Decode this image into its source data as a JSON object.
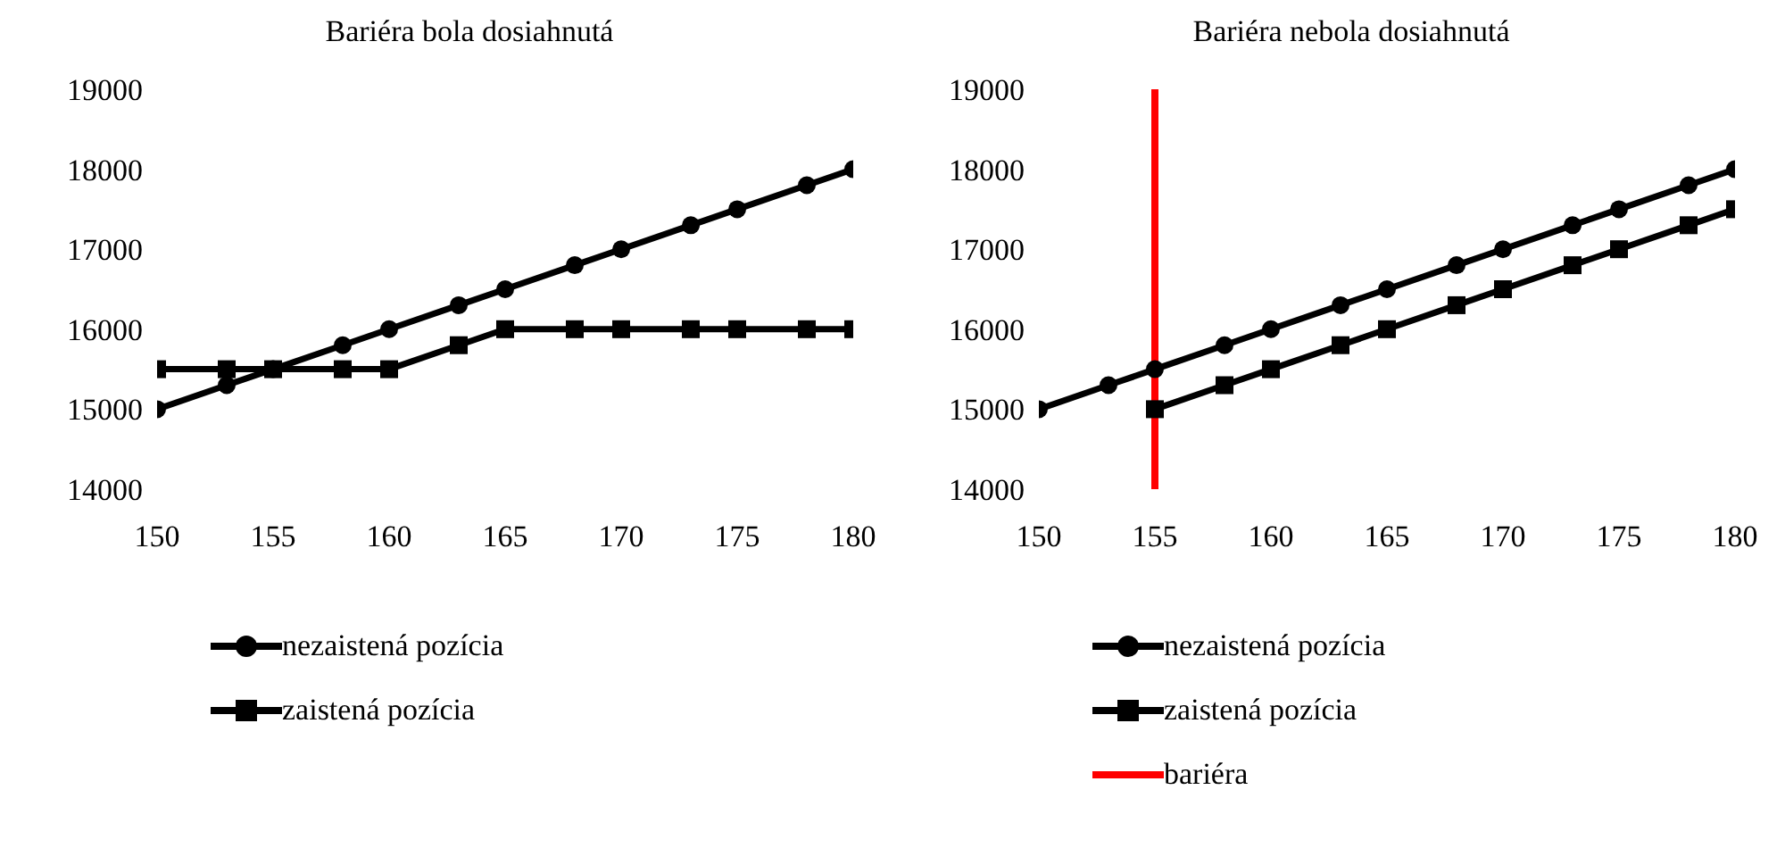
{
  "chart_data": [
    {
      "type": "line",
      "title": "Bariéra bola dosiahnutá",
      "xlim": [
        150,
        180
      ],
      "xticks": [
        150,
        155,
        160,
        165,
        170,
        175,
        180
      ],
      "ylim": [
        14000,
        19000
      ],
      "yticks": [
        14000,
        15000,
        16000,
        17000,
        18000,
        19000
      ],
      "grid": false,
      "legend": "bottom",
      "line_style": "solid",
      "series": [
        {
          "name": "nezaistená pozícia",
          "color": "#000000",
          "marker": "circle",
          "x": [
            150,
            153,
            155,
            158,
            160,
            163,
            165,
            168,
            170,
            173,
            175,
            178,
            180
          ],
          "values": [
            15000,
            15300,
            15500,
            15800,
            16000,
            16300,
            16500,
            16800,
            17000,
            17300,
            17500,
            17800,
            18000
          ]
        },
        {
          "name": "zaistená pozícia",
          "color": "#000000",
          "marker": "square",
          "x": [
            150,
            153,
            155,
            158,
            160,
            163,
            165,
            168,
            170,
            173,
            175,
            178,
            180
          ],
          "values": [
            15500,
            15500,
            15500,
            15500,
            15500,
            15800,
            16000,
            16000,
            16000,
            16000,
            16000,
            16000,
            16000
          ]
        }
      ]
    },
    {
      "type": "line",
      "title": "Bariéra nebola dosiahnutá",
      "xlim": [
        150,
        180
      ],
      "xticks": [
        150,
        155,
        160,
        165,
        170,
        175,
        180
      ],
      "ylim": [
        14000,
        19000
      ],
      "yticks": [
        14000,
        15000,
        16000,
        17000,
        18000,
        19000
      ],
      "grid": false,
      "legend": "bottom",
      "line_style": "solid",
      "series": [
        {
          "name": "nezaistená pozícia",
          "color": "#000000",
          "marker": "circle",
          "x": [
            150,
            153,
            155,
            158,
            160,
            163,
            165,
            168,
            170,
            173,
            175,
            178,
            180
          ],
          "values": [
            15000,
            15300,
            15500,
            15800,
            16000,
            16300,
            16500,
            16800,
            17000,
            17300,
            17500,
            17800,
            18000
          ]
        },
        {
          "name": "zaistená pozícia",
          "color": "#000000",
          "marker": "square",
          "x": [
            155,
            158,
            160,
            163,
            165,
            168,
            170,
            173,
            175,
            178,
            180
          ],
          "values": [
            15000,
            15300,
            15500,
            15800,
            16000,
            16300,
            16500,
            16800,
            17000,
            17300,
            17500
          ]
        }
      ],
      "ref_lines": [
        {
          "axis": "x",
          "value": 155,
          "label": "bariéra",
          "color": "#ff0000"
        }
      ]
    }
  ]
}
